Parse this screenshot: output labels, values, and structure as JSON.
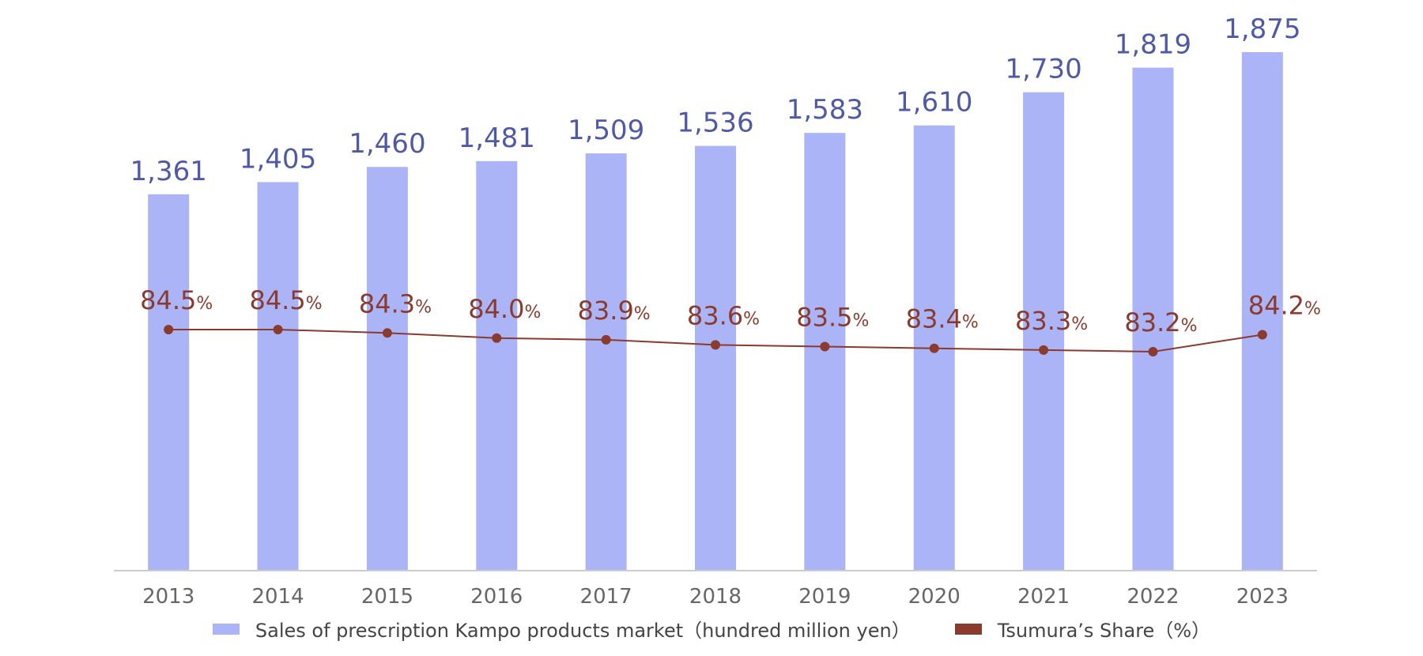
{
  "chart_data": {
    "type": "bar",
    "categories": [
      "2013",
      "2014",
      "2015",
      "2016",
      "2017",
      "2018",
      "2019",
      "2020",
      "2021",
      "2022",
      "2023"
    ],
    "series": [
      {
        "name": "Sales of prescription Kampo products market（hundred million yen）",
        "type": "bar",
        "values": [
          1361,
          1405,
          1460,
          1481,
          1509,
          1536,
          1583,
          1610,
          1730,
          1819,
          1875
        ],
        "labels": [
          "1,361",
          "1,405",
          "1,460",
          "1,481",
          "1,509",
          "1,536",
          "1,583",
          "1,610",
          "1,730",
          "1,819",
          "1,875"
        ]
      },
      {
        "name": "Tsumura’s Share（%）",
        "type": "line",
        "values": [
          84.5,
          84.5,
          84.3,
          84.0,
          83.9,
          83.6,
          83.5,
          83.4,
          83.3,
          83.2,
          84.2
        ],
        "labels": [
          "84.5",
          "84.5",
          "84.3",
          "84.0",
          "83.9",
          "83.6",
          "83.5",
          "83.4",
          "83.3",
          "83.2",
          "84.2"
        ],
        "label_unit": "%"
      }
    ],
    "title": "",
    "xlabel": "",
    "ylabel": "",
    "ylim": [
      0,
      1875
    ],
    "share_range": [
      83.2,
      84.5
    ],
    "grid": false,
    "legend_position": "bottom",
    "colors": {
      "bar": "#aab4f6",
      "bar_label": "#4f5aa6",
      "line": "#8b3a2e",
      "axis": "#cccccc",
      "tick": "#666666"
    }
  },
  "legend": {
    "items": [
      {
        "label": "Sales of prescription Kampo products market（hundred million yen）",
        "color": "#aab4f6"
      },
      {
        "label": "Tsumura’s Share（%）",
        "color": "#8b3a2e"
      }
    ]
  }
}
